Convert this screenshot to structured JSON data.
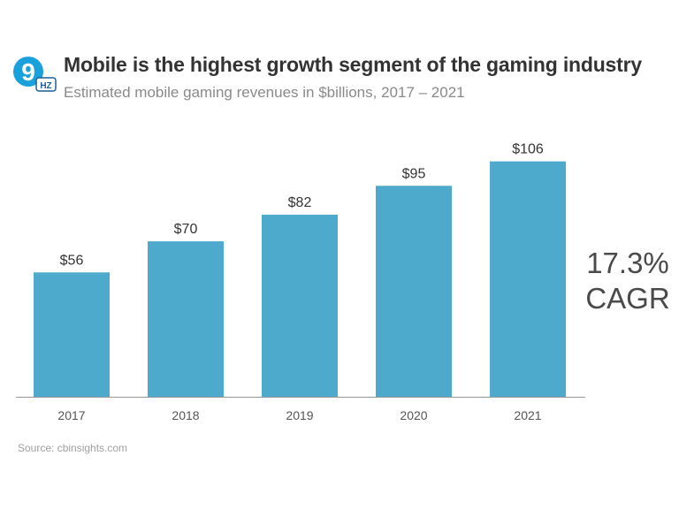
{
  "brand": {
    "logo_digit": "9",
    "logo_badge": "HZ",
    "primary_color": "#1aa0db",
    "badge_color": "#1b5f9c"
  },
  "title": "Mobile is the highest growth segment of the gaming industry",
  "subtitle": "Estimated mobile gaming revenues in $billions, 2017 – 2021",
  "callout": {
    "value": "17.3%",
    "label": "CAGR"
  },
  "source": "Source: cbinsights.com",
  "chart_data": {
    "type": "bar",
    "categories": [
      "2017",
      "2018",
      "2019",
      "2020",
      "2021"
    ],
    "values": [
      56,
      70,
      82,
      95,
      106
    ],
    "value_labels": [
      "$56",
      "$70",
      "$82",
      "$95",
      "$106"
    ],
    "ylim": [
      0,
      115
    ],
    "bar_color": "#4daacd",
    "grid": false,
    "xlabel": "",
    "ylabel": ""
  }
}
